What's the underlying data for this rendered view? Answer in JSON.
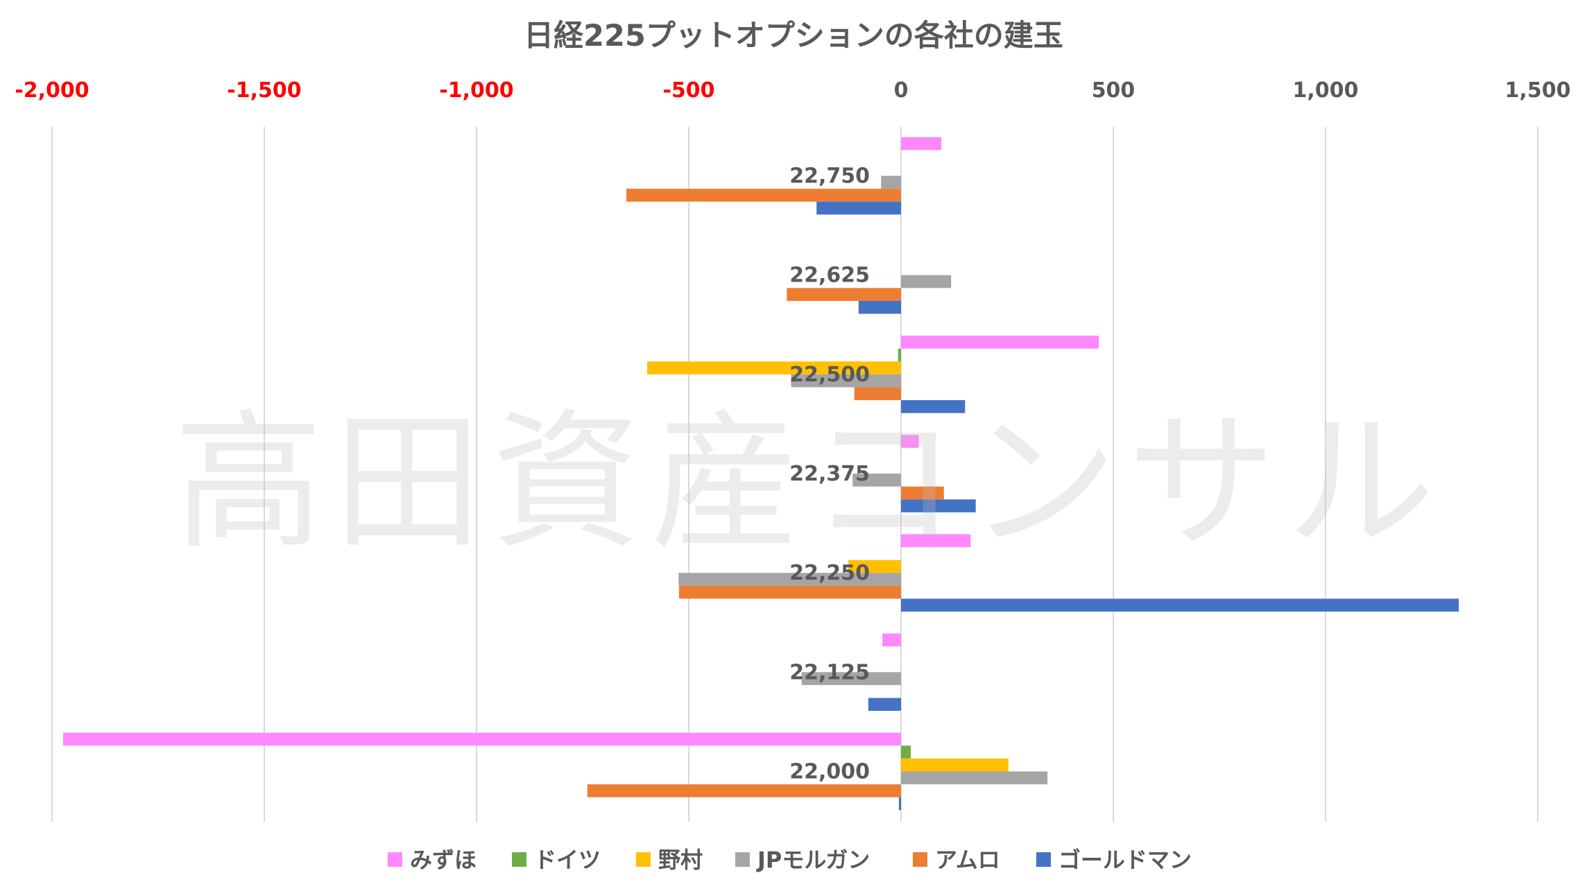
{
  "chart_data": {
    "type": "bar",
    "orientation": "horizontal",
    "title": "日経225プットオプションの各社の建玉",
    "xlim": [
      -2000,
      1500
    ],
    "x_ticks": [
      -2000,
      -1500,
      -1000,
      -500,
      0,
      500,
      1000,
      1500
    ],
    "x_tick_labels": [
      "-2,000",
      "-1,500",
      "-1,000",
      "-500",
      "0",
      "500",
      "1,000",
      "1,500"
    ],
    "negative_tick_color": "#FF0000",
    "positive_tick_color": "#595959",
    "grid": true,
    "legend_position": "bottom",
    "categories": [
      "22,750",
      "22,625",
      "22,500",
      "22,375",
      "22,250",
      "22,125",
      "22,000"
    ],
    "series": [
      {
        "name": "みずほ",
        "color": "#FF88FF",
        "values": [
          95,
          0,
          466,
          42,
          164,
          -44,
          -1974
        ]
      },
      {
        "name": "ドイツ",
        "color": "#70AD47",
        "values": [
          0,
          0,
          -7,
          0,
          0,
          0,
          23
        ]
      },
      {
        "name": "野村",
        "color": "#FFC000",
        "values": [
          0,
          0,
          -598,
          0,
          -124,
          0,
          253
        ]
      },
      {
        "name": "JPモルガン",
        "color": "#A5A5A5",
        "values": [
          -47,
          118,
          -259,
          -114,
          -524,
          -234,
          345
        ]
      },
      {
        "name": "アムロ",
        "color": "#ED7D31",
        "values": [
          -647,
          -269,
          -110,
          101,
          -523,
          0,
          -739
        ]
      },
      {
        "name": "ゴールドマン",
        "color": "#4472C4",
        "values": [
          -199,
          -100,
          151,
          176,
          1314,
          -77,
          -5
        ]
      }
    ]
  },
  "watermark": "高田資産コンサル"
}
